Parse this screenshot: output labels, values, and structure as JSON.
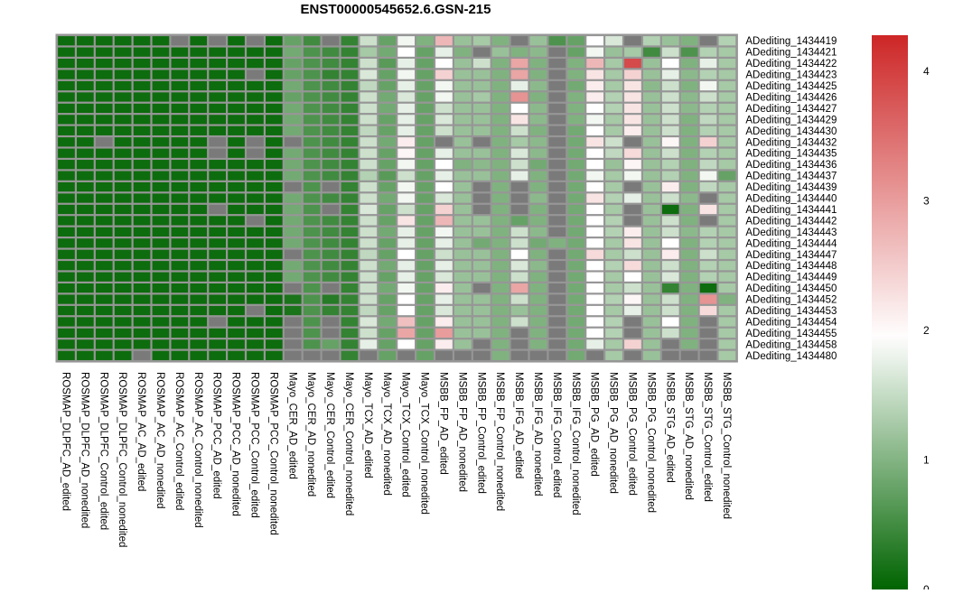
{
  "chart_data": {
    "type": "heatmap",
    "title": "ENST00000545652.6.GSN-215",
    "columns": [
      "ROSMAP_DLPFC_AD_edited",
      "ROSMAP_DLPFC_AD_nonedited",
      "ROSMAP_DLPFC_Control_edited",
      "ROSMAP_DLPFC_Control_nonedited",
      "ROSMAP_AC_AD_edited",
      "ROSMAP_AC_AD_nonedited",
      "ROSMAP_AC_Control_edited",
      "ROSMAP_AC_Control_nonedited",
      "ROSMAP_PCC_AD_edited",
      "ROSMAP_PCC_AD_nonedited",
      "ROSMAP_PCC_Control_edited",
      "ROSMAP_PCC_Control_nonedited",
      "Mayo_CER_AD_edited",
      "Mayo_CER_AD_nonedited",
      "Mayo_CER_Control_edited",
      "Mayo_CER_Control_nonedited",
      "Mayo_TCX_AD_edited",
      "Mayo_TCX_AD_nonedited",
      "Mayo_TCX_Control_edited",
      "Mayo_TCX_Control_nonedited",
      "MSBB_FP_AD_edited",
      "MSBB_FP_AD_nonedited",
      "MSBB_FP_Control_edited",
      "MSBB_FP_Control_nonedited",
      "MSBB_IFG_AD_edited",
      "MSBB_IFG_AD_nonedited",
      "MSBB_IFG_Control_edited",
      "MSBB_IFG_Control_nonedited",
      "MSBB_PG_AD_edited",
      "MSBB_PG_AD_nonedited",
      "MSBB_PG_Control_edited",
      "MSBB_PG_Control_nonedited",
      "MSBB_STG_AD_edited",
      "MSBB_STG_AD_nonedited",
      "MSBB_STG_Control_edited",
      "MSBB_STG_Control_nonedited"
    ],
    "rows": [
      "ADediting_1434419",
      "ADediting_1434421",
      "ADediting_1434422",
      "ADediting_1434423",
      "ADediting_1434425",
      "ADediting_1434426",
      "ADediting_1434427",
      "ADediting_1434429",
      "ADediting_1434430",
      "ADediting_1434432",
      "ADediting_1434435",
      "ADediting_1434436",
      "ADediting_1434437",
      "ADediting_1434439",
      "ADediting_1434440",
      "ADediting_1434441",
      "ADediting_1434442",
      "ADediting_1434443",
      "ADediting_1434444",
      "ADediting_1434447",
      "ADediting_1434448",
      "ADediting_1434449",
      "ADediting_1434450",
      "ADediting_1434452",
      "ADediting_1434453",
      "ADediting_1434454",
      "ADediting_1434455",
      "ADediting_1434458",
      "ADediting_1434480"
    ],
    "values": [
      [
        0.1,
        0.1,
        0.1,
        0.1,
        0.1,
        0.1,
        null,
        0.1,
        null,
        0.1,
        null,
        0.1,
        0.8,
        0.5,
        null,
        0.4,
        1.6,
        0.8,
        1.9,
        1.0,
        2.8,
        1.2,
        1.3,
        1.0,
        null,
        1.2,
        0.6,
        0.8,
        2.0,
        1.7,
        null,
        1.4,
        1.2,
        1.0,
        null,
        1.4
      ],
      [
        0.1,
        0.1,
        0.1,
        0.1,
        0.1,
        0.1,
        0.1,
        0.1,
        0.1,
        0.1,
        0.1,
        0.1,
        0.9,
        0.6,
        0.5,
        0.4,
        1.3,
        0.9,
        2.0,
        0.8,
        1.8,
        1.0,
        null,
        1.2,
        1.0,
        1.1,
        null,
        0.8,
        1.9,
        1.2,
        1.3,
        0.5,
        1.6,
        0.6,
        1.4,
        1.3
      ],
      [
        0.1,
        0.1,
        0.1,
        0.1,
        0.1,
        0.1,
        0.1,
        0.1,
        0.1,
        0.1,
        0.1,
        0.1,
        0.8,
        0.6,
        0.5,
        0.4,
        1.6,
        0.7,
        1.8,
        0.8,
        2.0,
        1.2,
        1.6,
        1.0,
        3.0,
        1.0,
        null,
        1.0,
        2.8,
        1.3,
        4.0,
        1.2,
        2.0,
        1.0,
        1.8,
        1.3
      ],
      [
        0.1,
        0.1,
        0.1,
        0.1,
        0.1,
        0.1,
        0.1,
        0.1,
        0.1,
        0.1,
        null,
        0.1,
        0.8,
        0.6,
        0.4,
        0.4,
        1.7,
        0.8,
        1.9,
        0.8,
        2.5,
        1.2,
        1.2,
        1.0,
        3.0,
        1.0,
        null,
        1.0,
        2.3,
        1.3,
        2.5,
        1.2,
        1.8,
        1.1,
        1.4,
        1.3
      ],
      [
        0.1,
        0.1,
        0.1,
        0.1,
        0.1,
        0.1,
        0.1,
        0.1,
        0.1,
        0.1,
        0.1,
        0.1,
        0.9,
        0.6,
        0.5,
        0.4,
        1.5,
        0.8,
        1.8,
        0.8,
        1.9,
        1.2,
        1.2,
        1.0,
        1.8,
        1.1,
        null,
        0.9,
        2.2,
        1.3,
        2.3,
        1.1,
        1.6,
        1.0,
        1.9,
        1.3
      ],
      [
        0.1,
        0.1,
        0.1,
        0.1,
        0.1,
        0.1,
        0.1,
        0.1,
        0.1,
        0.1,
        0.1,
        0.1,
        0.8,
        0.6,
        0.5,
        0.4,
        1.6,
        0.9,
        1.7,
        0.8,
        1.9,
        1.2,
        1.3,
        1.0,
        3.2,
        1.0,
        null,
        1.0,
        2.2,
        1.4,
        2.3,
        1.2,
        1.6,
        1.1,
        1.6,
        1.3
      ],
      [
        0.1,
        0.1,
        0.1,
        0.1,
        0.1,
        0.1,
        0.1,
        0.1,
        0.1,
        0.1,
        0.1,
        0.1,
        0.9,
        0.6,
        0.5,
        0.4,
        1.6,
        0.9,
        1.8,
        0.8,
        1.6,
        1.2,
        1.2,
        1.0,
        2.0,
        1.1,
        null,
        1.0,
        2.0,
        1.4,
        2.3,
        1.2,
        1.6,
        1.1,
        1.4,
        1.3
      ],
      [
        0.1,
        0.1,
        0.1,
        0.1,
        0.1,
        0.1,
        0.1,
        0.1,
        0.1,
        0.1,
        0.1,
        0.1,
        0.9,
        0.6,
        0.5,
        0.4,
        1.6,
        0.8,
        1.8,
        0.8,
        1.7,
        1.2,
        1.2,
        1.0,
        2.3,
        1.1,
        null,
        1.0,
        1.9,
        1.3,
        2.3,
        1.2,
        1.6,
        1.0,
        1.5,
        1.3
      ],
      [
        0.1,
        0.1,
        0.1,
        0.1,
        0.1,
        0.1,
        0.1,
        0.1,
        0.1,
        0.1,
        0.1,
        0.1,
        0.9,
        0.6,
        0.5,
        0.4,
        1.5,
        0.8,
        1.8,
        0.8,
        1.6,
        1.2,
        1.2,
        1.0,
        1.6,
        1.0,
        null,
        0.9,
        2.0,
        1.3,
        2.2,
        1.2,
        1.6,
        1.0,
        1.4,
        1.3
      ],
      [
        0.1,
        0.1,
        null,
        0.1,
        0.1,
        0.1,
        0.1,
        0.1,
        null,
        0.1,
        null,
        0.1,
        null,
        0.6,
        0.5,
        0.4,
        1.6,
        0.9,
        2.2,
        0.8,
        null,
        1.2,
        null,
        1.0,
        1.3,
        1.1,
        null,
        0.9,
        2.3,
        1.6,
        null,
        1.2,
        2.1,
        1.0,
        2.5,
        1.3
      ],
      [
        0.1,
        0.1,
        0.1,
        0.1,
        0.1,
        0.1,
        0.1,
        0.1,
        null,
        0.1,
        null,
        0.1,
        0.9,
        0.6,
        0.5,
        0.4,
        1.6,
        0.8,
        2.1,
        0.8,
        1.8,
        1.2,
        1.2,
        1.0,
        1.7,
        1.1,
        null,
        0.9,
        2.0,
        1.5,
        2.4,
        1.2,
        1.6,
        1.0,
        1.4,
        1.3
      ],
      [
        0.1,
        0.1,
        0.1,
        0.1,
        0.1,
        0.1,
        0.1,
        0.1,
        0.1,
        0.1,
        0.1,
        0.1,
        0.9,
        0.6,
        0.5,
        0.4,
        1.6,
        0.8,
        1.9,
        0.8,
        2.0,
        1.0,
        1.1,
        1.0,
        1.6,
        0.9,
        null,
        0.9,
        2.0,
        1.2,
        2.1,
        1.2,
        1.4,
        1.0,
        1.5,
        1.3
      ],
      [
        0.1,
        0.1,
        0.1,
        0.1,
        0.1,
        0.1,
        0.1,
        0.1,
        0.1,
        0.1,
        0.1,
        0.1,
        0.9,
        0.6,
        0.5,
        0.4,
        1.4,
        0.7,
        1.6,
        0.8,
        1.8,
        1.2,
        1.2,
        1.0,
        1.8,
        1.0,
        null,
        0.9,
        1.9,
        1.3,
        1.9,
        1.2,
        1.4,
        1.0,
        1.9,
        0.8
      ],
      [
        0.1,
        0.1,
        0.1,
        0.1,
        0.1,
        0.1,
        0.1,
        0.1,
        0.1,
        0.1,
        0.1,
        0.1,
        null,
        0.6,
        null,
        0.4,
        1.6,
        0.8,
        1.9,
        0.8,
        2.0,
        1.2,
        null,
        1.0,
        null,
        1.0,
        null,
        0.9,
        2.0,
        1.3,
        null,
        1.2,
        2.2,
        1.0,
        1.5,
        1.3
      ],
      [
        0.1,
        0.1,
        0.1,
        0.1,
        0.1,
        0.1,
        0.1,
        0.1,
        0.1,
        0.1,
        0.1,
        0.1,
        0.9,
        0.6,
        0.5,
        0.4,
        1.6,
        0.9,
        1.9,
        0.8,
        1.7,
        1.2,
        null,
        1.0,
        null,
        1.1,
        null,
        0.9,
        2.3,
        1.4,
        1.8,
        1.2,
        1.6,
        1.1,
        null,
        1.3
      ],
      [
        0.1,
        0.1,
        0.1,
        0.1,
        0.1,
        0.1,
        0.1,
        0.1,
        null,
        0.1,
        0.1,
        0.1,
        0.9,
        0.6,
        null,
        0.4,
        1.7,
        0.8,
        1.6,
        0.8,
        2.5,
        1.2,
        null,
        1.0,
        null,
        1.0,
        null,
        0.9,
        2.0,
        1.3,
        null,
        1.2,
        0.1,
        1.0,
        2.3,
        1.3
      ],
      [
        0.1,
        0.1,
        0.1,
        0.1,
        0.1,
        0.1,
        0.1,
        0.1,
        0.1,
        0.1,
        null,
        0.1,
        0.9,
        0.6,
        0.5,
        0.4,
        1.6,
        0.8,
        2.3,
        0.8,
        2.8,
        1.2,
        1.2,
        1.0,
        0.8,
        1.0,
        null,
        0.9,
        2.0,
        1.4,
        null,
        1.2,
        1.6,
        1.0,
        null,
        1.3
      ],
      [
        0.1,
        0.1,
        0.1,
        0.1,
        0.1,
        0.1,
        0.1,
        0.1,
        0.1,
        0.1,
        0.1,
        0.1,
        0.9,
        0.6,
        0.5,
        0.4,
        1.6,
        0.9,
        1.8,
        0.8,
        1.9,
        1.2,
        1.2,
        1.0,
        1.6,
        1.1,
        null,
        0.9,
        2.0,
        1.4,
        2.2,
        1.2,
        1.6,
        1.1,
        1.4,
        1.3
      ],
      [
        0.1,
        0.1,
        0.1,
        0.1,
        0.1,
        0.1,
        0.1,
        0.1,
        0.1,
        0.1,
        0.1,
        0.1,
        0.9,
        0.6,
        0.5,
        0.4,
        1.6,
        0.8,
        1.8,
        0.8,
        1.8,
        1.2,
        0.9,
        1.0,
        1.6,
        0.9,
        1.0,
        0.9,
        2.0,
        1.3,
        2.3,
        1.2,
        2.0,
        1.0,
        1.4,
        1.3
      ],
      [
        0.1,
        0.1,
        0.1,
        0.1,
        0.1,
        0.1,
        0.1,
        0.1,
        0.1,
        0.1,
        0.1,
        0.1,
        null,
        0.6,
        0.5,
        0.4,
        1.5,
        0.8,
        2.0,
        0.8,
        1.6,
        1.2,
        1.2,
        1.0,
        2.0,
        1.0,
        null,
        0.9,
        2.4,
        1.3,
        1.6,
        1.2,
        2.2,
        1.0,
        1.6,
        1.3
      ],
      [
        0.1,
        0.1,
        0.1,
        0.1,
        0.1,
        0.1,
        0.1,
        0.1,
        0.1,
        0.1,
        0.1,
        0.1,
        0.9,
        0.6,
        0.5,
        0.4,
        1.6,
        0.9,
        1.8,
        0.8,
        1.8,
        1.2,
        1.2,
        1.0,
        1.7,
        1.1,
        null,
        0.9,
        2.0,
        1.4,
        2.4,
        1.2,
        1.6,
        1.0,
        1.4,
        1.3
      ],
      [
        0.1,
        0.1,
        0.1,
        0.1,
        0.1,
        0.1,
        0.1,
        0.1,
        0.1,
        0.1,
        0.1,
        0.1,
        0.9,
        0.6,
        0.5,
        0.4,
        1.6,
        0.8,
        1.8,
        0.8,
        1.7,
        1.2,
        1.2,
        1.0,
        1.6,
        1.0,
        null,
        0.9,
        2.0,
        1.3,
        2.0,
        1.2,
        1.7,
        1.0,
        1.4,
        1.3
      ],
      [
        0.1,
        0.1,
        0.1,
        0.1,
        0.1,
        0.1,
        0.1,
        0.1,
        0.1,
        0.1,
        0.1,
        0.1,
        null,
        0.6,
        null,
        0.4,
        1.6,
        0.9,
        1.9,
        0.8,
        2.2,
        1.2,
        null,
        1.0,
        3.0,
        1.0,
        null,
        0.9,
        2.0,
        1.3,
        1.6,
        1.2,
        0.4,
        1.0,
        0.1,
        1.3
      ],
      [
        0.1,
        0.1,
        0.1,
        0.1,
        0.1,
        0.1,
        0.1,
        0.1,
        0.1,
        0.1,
        0.1,
        0.1,
        0.2,
        0.6,
        0.3,
        0.4,
        1.6,
        0.8,
        2.0,
        0.8,
        1.8,
        1.2,
        1.2,
        1.0,
        1.6,
        1.0,
        null,
        0.9,
        2.0,
        1.4,
        2.1,
        1.2,
        1.6,
        1.0,
        3.2,
        1.0
      ],
      [
        0.1,
        0.1,
        0.1,
        0.1,
        0.1,
        0.1,
        0.1,
        0.1,
        0.1,
        0.1,
        null,
        0.1,
        0.2,
        0.6,
        0.4,
        0.4,
        1.5,
        0.8,
        2.0,
        0.8,
        1.7,
        1.2,
        1.2,
        1.0,
        1.2,
        1.0,
        null,
        0.9,
        2.0,
        1.3,
        1.8,
        1.2,
        1.6,
        1.0,
        2.4,
        1.3
      ],
      [
        0.1,
        0.1,
        0.1,
        0.1,
        0.1,
        0.1,
        0.1,
        0.1,
        null,
        0.1,
        0.1,
        0.1,
        null,
        0.6,
        null,
        0.4,
        1.7,
        0.9,
        2.7,
        0.8,
        2.2,
        1.2,
        1.2,
        1.0,
        1.6,
        1.0,
        null,
        0.9,
        2.0,
        1.4,
        null,
        1.2,
        2.0,
        1.0,
        null,
        1.3
      ],
      [
        0.1,
        0.1,
        0.1,
        0.1,
        0.1,
        0.1,
        0.1,
        0.1,
        0.1,
        0.1,
        0.1,
        0.1,
        null,
        0.6,
        null,
        0.4,
        1.6,
        0.8,
        3.0,
        0.8,
        3.1,
        1.2,
        1.2,
        1.0,
        null,
        1.0,
        null,
        0.9,
        2.0,
        1.4,
        null,
        1.2,
        1.6,
        1.0,
        null,
        1.3
      ],
      [
        0.1,
        0.1,
        0.1,
        0.1,
        0.1,
        0.1,
        0.1,
        0.1,
        0.1,
        0.1,
        0.1,
        0.1,
        null,
        0.6,
        0.8,
        0.4,
        1.8,
        0.8,
        2.0,
        0.8,
        2.2,
        1.2,
        null,
        1.0,
        null,
        1.0,
        null,
        0.9,
        1.8,
        1.3,
        2.5,
        1.2,
        null,
        1.0,
        null,
        1.3
      ],
      [
        0.1,
        0.1,
        0.1,
        0.1,
        null,
        0.1,
        0.1,
        0.1,
        0.1,
        0.1,
        0.1,
        0.1,
        null,
        null,
        null,
        0.4,
        null,
        0.8,
        null,
        0.8,
        null,
        null,
        null,
        1.0,
        null,
        null,
        null,
        0.9,
        null,
        1.3,
        null,
        1.2,
        null,
        null,
        null,
        1.3
      ]
    ],
    "legend": {
      "position": "right",
      "range": [
        0,
        4.4
      ],
      "ticks": [
        "0",
        "1",
        "2",
        "3",
        "4"
      ],
      "tick_values": [
        0,
        1,
        2,
        3,
        4
      ],
      "colors": {
        "low": "#006400",
        "mid": "#ffffff",
        "high": "#cd2626"
      },
      "midpoint": 2,
      "na_color": "#7a7a7a"
    },
    "grid_color": "#969696"
  }
}
